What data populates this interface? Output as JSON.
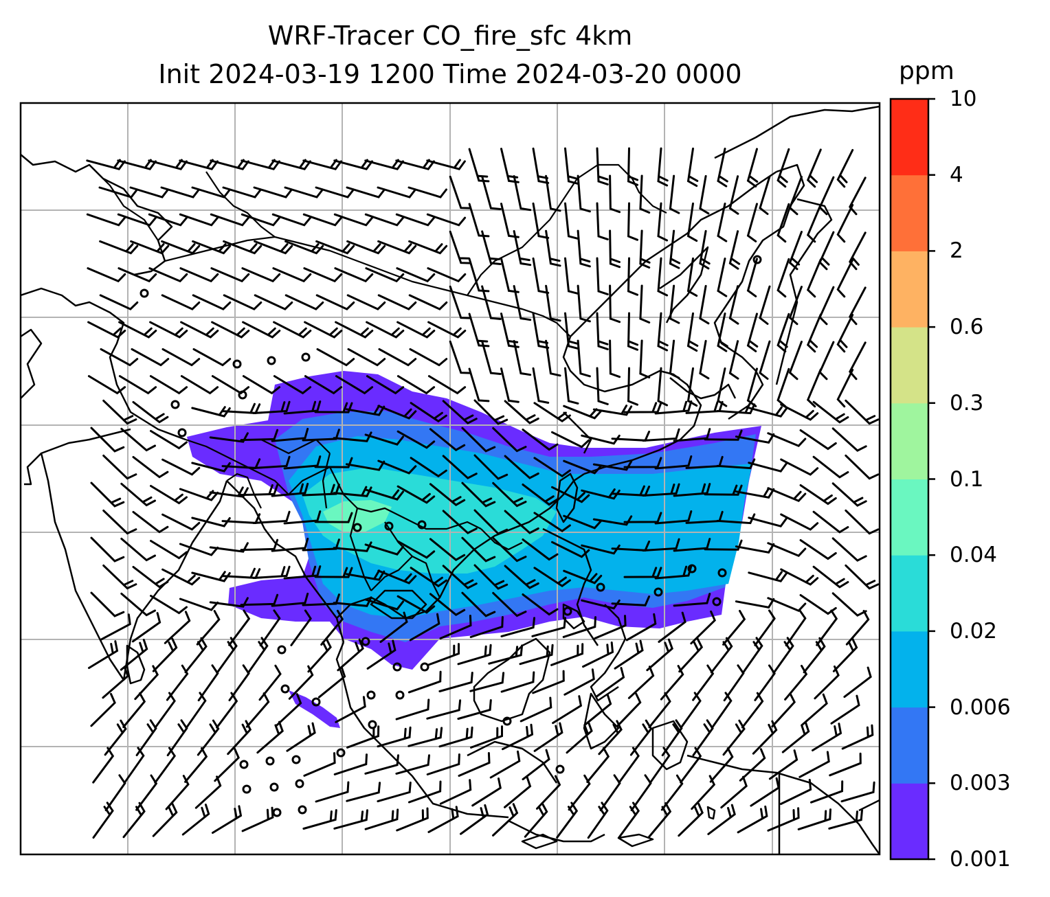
{
  "title": {
    "line1": "WRF-Tracer CO_fire_sfc 4km",
    "line2": "Init 2024-03-19 1200 Time 2024-03-20 0000"
  },
  "colorbar": {
    "unit": "ppm",
    "levels": [
      "0.001",
      "0.003",
      "0.006",
      "0.02",
      "0.04",
      "0.1",
      "0.3",
      "0.6",
      "2",
      "4",
      "10"
    ],
    "colors": [
      "#6a2cff",
      "#3377f4",
      "#03b2ec",
      "#2adcd8",
      "#6af7c0",
      "#9ff59e",
      "#d4e388",
      "#feb262",
      "#ff7038",
      "#ff2d17"
    ]
  },
  "map": {
    "gridlines": "on",
    "overlays": [
      "coastlines",
      "country-borders",
      "wind-barbs",
      "calm-wind-circles"
    ]
  }
}
